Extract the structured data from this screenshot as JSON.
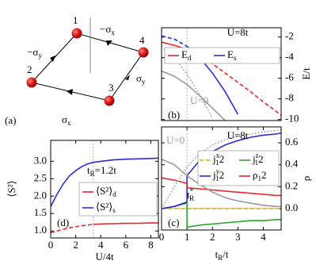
{
  "diagram": {
    "panel_label": "(a)",
    "nodes": [
      {
        "label": "1"
      },
      {
        "label": "4"
      },
      {
        "label": "3"
      },
      {
        "label": "2"
      }
    ],
    "edges": [
      {
        "label": "−σ_x"
      },
      {
        "label": "σ_y"
      },
      {
        "label": "σ_x"
      },
      {
        "label": "−σ_y"
      }
    ]
  },
  "chart_data": [
    {
      "type": "line",
      "panel_label": "(b)",
      "ylabel": "E/t",
      "annotations": [
        {
          "text": "U=8t",
          "color": "#000000"
        },
        {
          "text": "U=0",
          "color": "#999999"
        }
      ],
      "x": [
        0,
        0.5,
        1,
        1.5,
        2,
        2.5,
        3,
        3.5,
        4,
        4.5,
        4.7
      ],
      "xlim": [
        0,
        4.7
      ],
      "ylim": [
        -10.1,
        -1.1
      ],
      "yticks": [
        -2,
        -4,
        -6,
        -8,
        -10
      ],
      "vline": 1,
      "series": [
        {
          "name": "E_d",
          "color": "#e8262b",
          "dash": "solid",
          "values": [
            -2.5,
            -2.8,
            -3.2,
            null,
            null,
            null,
            null,
            null,
            null,
            null,
            null
          ]
        },
        {
          "name": "E_s",
          "color": "#2b2bd6",
          "dash": "solid",
          "values": [
            null,
            null,
            -2.9,
            -4.0,
            -5.5,
            -7.3,
            -9.5,
            null,
            null,
            null,
            null
          ]
        },
        {
          "color": "#e8262b",
          "dash": "dashed",
          "values": [
            null,
            null,
            -3.2,
            -3.8,
            -4.6,
            -5.5,
            -6.4,
            -7.3,
            -8.3,
            -9.2,
            -9.6
          ]
        },
        {
          "color": "#2b2bd6",
          "dash": "dashed",
          "values": [
            -1.9,
            -2.2,
            -2.9,
            null,
            null,
            null,
            null,
            null,
            null,
            null,
            null
          ]
        },
        {
          "color": "#999999",
          "dash": "dotted",
          "values": [
            -2.9,
            -4.0,
            -5.6,
            -7.6,
            -9.9,
            null,
            null,
            null,
            null,
            null,
            null
          ]
        },
        {
          "color": "#999999",
          "dash": "solid",
          "values": [
            -5.3,
            -5.8,
            -6.6,
            -7.7,
            -8.9,
            -10.1,
            null,
            null,
            null,
            null,
            null
          ]
        }
      ]
    },
    {
      "type": "line",
      "panel_label": "(c)",
      "xlabel": "t_R/t",
      "ylabel": "ρ",
      "annotations": [
        {
          "text": "U=8t",
          "color": "#000000"
        },
        {
          "text": "U=0",
          "color": "#999999"
        },
        {
          "text": "t^*_R",
          "color": "#000000"
        }
      ],
      "x": [
        0,
        0.5,
        1,
        1,
        1.5,
        2,
        2.5,
        3,
        3.5,
        4,
        4.5,
        4.7
      ],
      "xlim": [
        0,
        4.7
      ],
      "xticks": [
        0,
        1,
        2,
        3,
        4
      ],
      "ylim": [
        -0.195,
        0.745
      ],
      "yticks": [
        {
          "value": 0,
          "label": "0.0"
        },
        0.2,
        0.4,
        0.6
      ],
      "vline": 1,
      "zero_line": true,
      "series": [
        {
          "name": "j^x_12",
          "color": "#d9a514",
          "dash": "dashed",
          "values": [
            0,
            0,
            0,
            0,
            0,
            0,
            0,
            0,
            0,
            0,
            0,
            0
          ]
        },
        {
          "name": "j^z_12",
          "color": "#2ea52e",
          "dash": "solid",
          "values": [
            0,
            0.02,
            0.05,
            -0.17,
            -0.15,
            -0.14,
            -0.13,
            -0.12,
            -0.11,
            -0.11,
            -0.1,
            -0.1
          ]
        },
        {
          "name": "j^y_12",
          "color": "#2b2bd6",
          "dash": "solid",
          "values": [
            0,
            0.02,
            0.06,
            0.3,
            0.44,
            0.52,
            0.58,
            0.62,
            0.65,
            0.67,
            0.68,
            0.69
          ]
        },
        {
          "name": "ρ_12",
          "color": "#e8262b",
          "dash": "solid",
          "values": [
            0.28,
            0.26,
            0.23,
            0.19,
            0.18,
            0.17,
            0.16,
            0.15,
            0.14,
            0.13,
            0.12,
            0.12
          ]
        },
        {
          "color": "#999999",
          "dash": "dotted",
          "values": [
            0,
            0.2,
            0.38,
            0.38,
            0.5,
            0.58,
            0.63,
            0.66,
            0.68,
            0.7,
            0.71,
            0.72
          ]
        },
        {
          "color": "#999999",
          "dash": "solid",
          "values": [
            0.45,
            0.4,
            0.3,
            0.3,
            0.22,
            0.15,
            0.1,
            0.07,
            0.05,
            0.03,
            0.02,
            0.02
          ]
        }
      ]
    },
    {
      "type": "line",
      "panel_label": "(d)",
      "xlabel": "U/4t",
      "ylabel": "⟨S²⟩",
      "annotations": [
        {
          "text": "t_R=1.2t",
          "color": "#000000"
        }
      ],
      "x": [
        0,
        0.5,
        1,
        1.5,
        2,
        2.5,
        3,
        3.4,
        4,
        5,
        6,
        7,
        8,
        8.6
      ],
      "xlim": [
        0,
        8.6
      ],
      "xticks": [
        0,
        2,
        4,
        6,
        8
      ],
      "ylim": [
        0.8,
        3.6
      ],
      "yticks": [
        {
          "value": 1,
          "label": "1.0"
        },
        1.5,
        {
          "value": 2,
          "label": "2.0"
        },
        2.5,
        {
          "value": 3,
          "label": "3.0"
        }
      ],
      "vline": 3.4,
      "series": [
        {
          "name": "⟨S²⟩_d",
          "color": "#e8262b",
          "dash": "solid",
          "values": [
            null,
            null,
            null,
            null,
            null,
            null,
            null,
            1.19,
            1.2,
            1.21,
            1.22,
            1.22,
            1.23,
            1.23
          ]
        },
        {
          "name": "⟨S²⟩_s",
          "color": "#2b2bd6",
          "dash": "solid",
          "values": [
            1.7,
            2.05,
            2.35,
            2.58,
            2.73,
            2.85,
            2.93,
            2.97,
            3.0,
            3.04,
            3.06,
            3.07,
            3.08,
            3.09
          ]
        },
        {
          "color": "#e8262b",
          "dash": "dashed",
          "values": [
            0.95,
            1.0,
            1.05,
            1.09,
            1.12,
            1.15,
            1.17,
            1.19,
            null,
            null,
            null,
            null,
            null,
            null
          ]
        }
      ]
    }
  ]
}
